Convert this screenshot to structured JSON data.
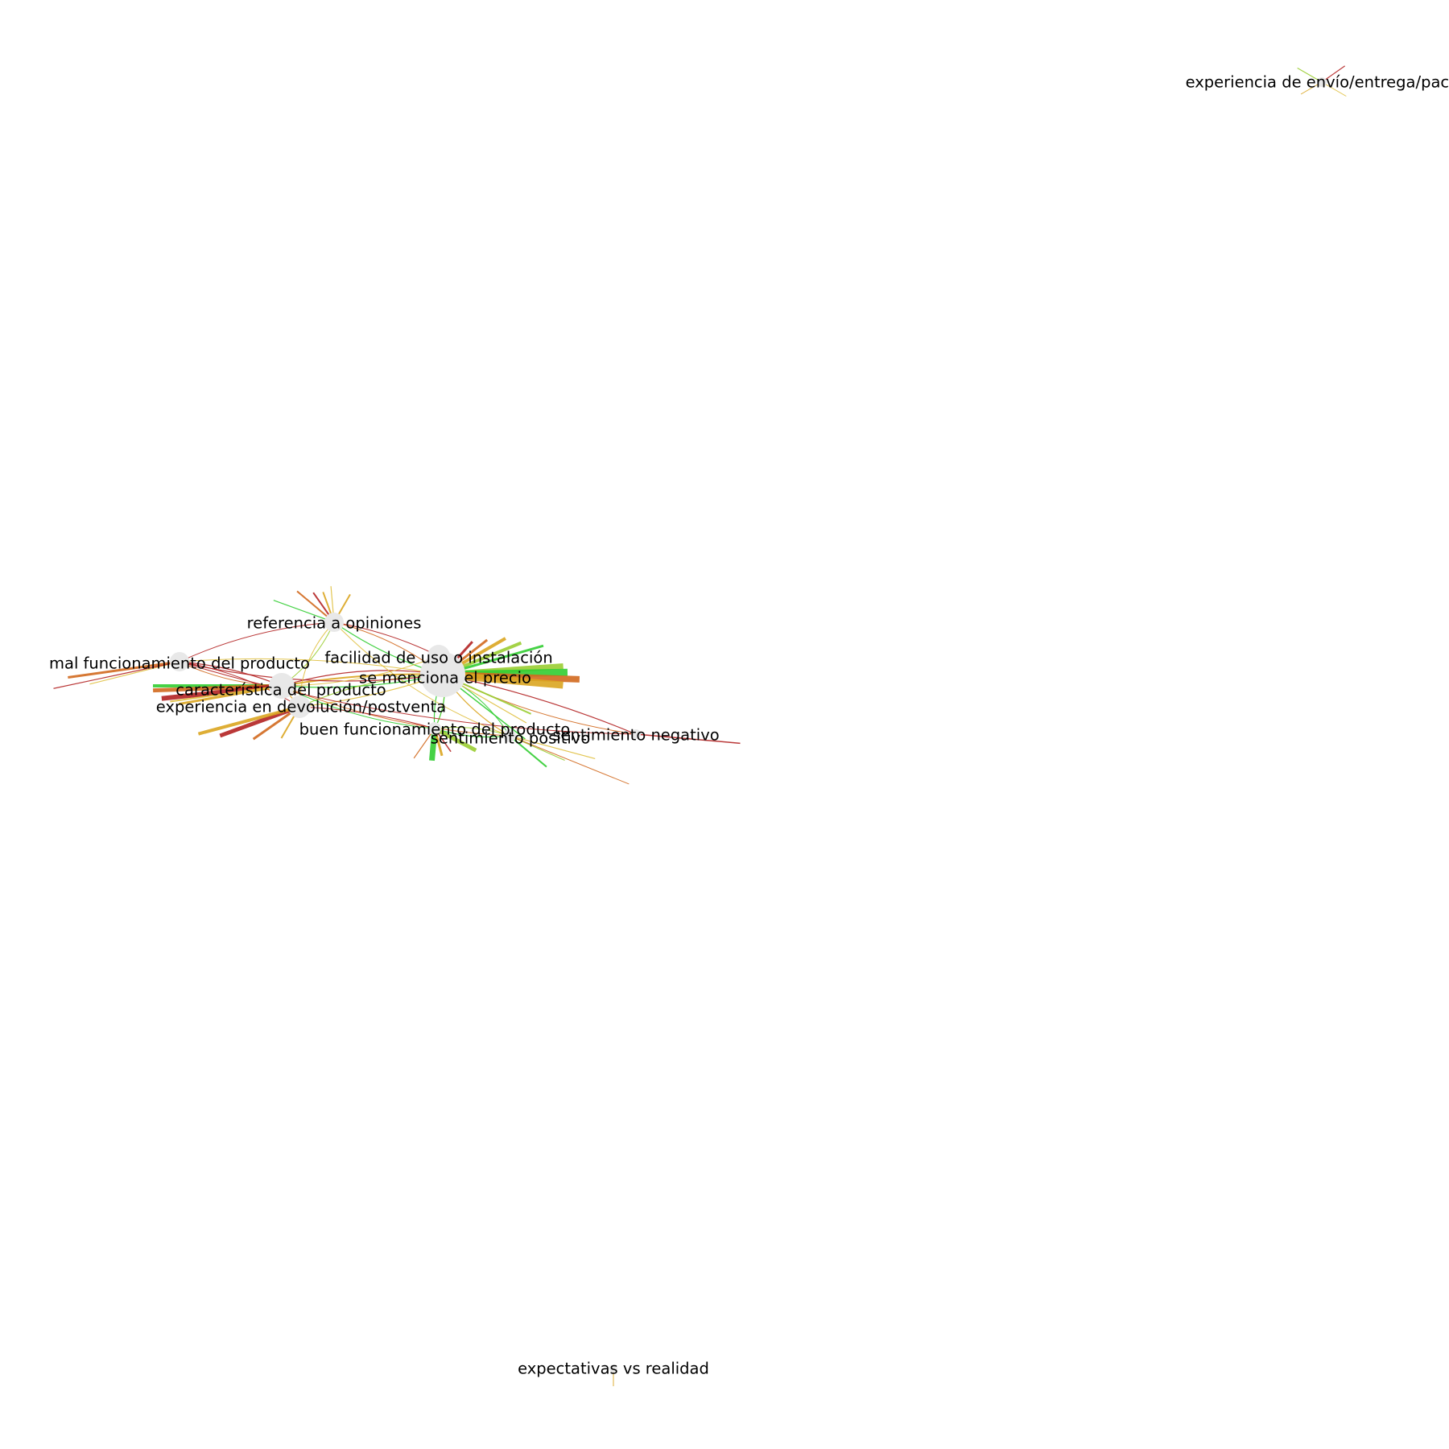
{
  "nodes": [
    {
      "id": "precio",
      "label": "se menciona el precio"
    },
    {
      "id": "facilidad",
      "label": "facilidad de uso o instalación"
    },
    {
      "id": "caracteristica",
      "label": "característica del producto"
    },
    {
      "id": "devolucion",
      "label": "experiencia en devolución/postventa"
    },
    {
      "id": "mal",
      "label": "mal funcionamiento del producto"
    },
    {
      "id": "referencia",
      "label": "referencia a opiniones"
    },
    {
      "id": "buen",
      "label": "buen funcionamiento del producto"
    },
    {
      "id": "positivo",
      "label": "sentimiento positivo"
    },
    {
      "id": "negativo",
      "label": "sentimiento negativo"
    },
    {
      "id": "envio",
      "label": "experiencia de envío/entrega/pack"
    },
    {
      "id": "expectativas",
      "label": "expectativas vs realidad"
    }
  ],
  "edge_colors": {
    "red": "#b22222",
    "orange": "#d2691e",
    "amber": "#daa520",
    "yellow": "#e0c040",
    "lime": "#9acd32",
    "green": "#32cd32"
  },
  "node_fill": "#e8e8e8"
}
